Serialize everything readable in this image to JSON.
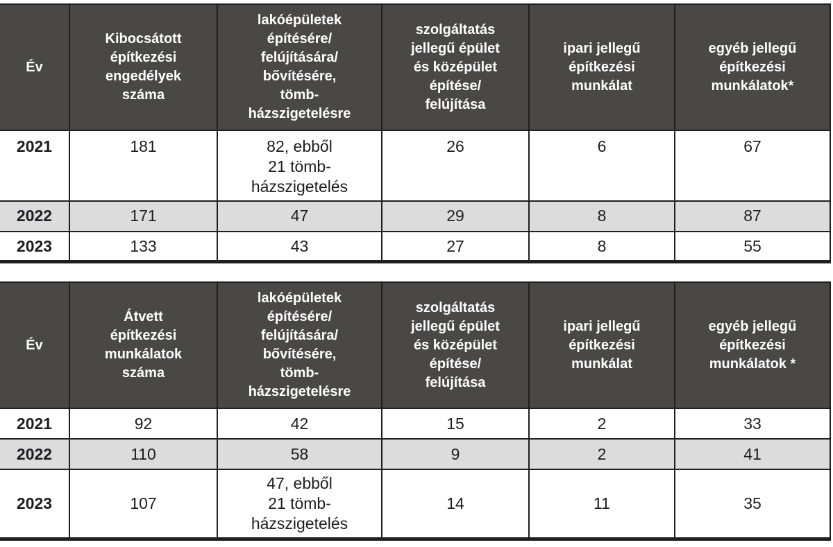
{
  "colors": {
    "header_bg": "#4a4747",
    "header_text": "#ffffff",
    "row_bg": "#ffffff",
    "row_alt_bg": "#dcdcdc",
    "border": "#1f1f1f",
    "body_text": "#1d1d20"
  },
  "tables": [
    {
      "name": "permits-issued",
      "headers": [
        "Év",
        "Kibocsátott\népítkezési\nengedélyek\nszáma",
        "lakóépületek\népítésére/\nfelújítására/\nbővítésére,\ntömb-\nházszigetelésre",
        "szolgáltatás\njellegű épület\nés középület\népítése/\nfelújítása",
        "ipari jellegű\népítkezési\nmunkálat",
        "egyéb jellegű\népítkezési\nmunkálatok*"
      ],
      "rows": [
        {
          "year": "2021",
          "values": [
            "181",
            "82, ebből\n21 tömb-\nházszigetelés",
            "26",
            "6",
            "67"
          ],
          "shaded": false,
          "align": "top"
        },
        {
          "year": "2022",
          "values": [
            "171",
            "47",
            "29",
            "8",
            "87"
          ],
          "shaded": true,
          "align": "middle"
        },
        {
          "year": "2023",
          "values": [
            "133",
            "43",
            "27",
            "8",
            "55"
          ],
          "shaded": false,
          "align": "middle"
        }
      ]
    },
    {
      "name": "works-received",
      "headers": [
        "Év",
        "Átvett\népítkezési\nmunkálatok\nszáma",
        "lakóépületek\népítésére/\nfelújítására/\nbővítésére,\ntömb-\nházszigetelésre",
        "szolgáltatás\njellegű épület\nés középület\népítése/\nfelújítása",
        "ipari jellegű\népítkezési\nmunkálat",
        "egyéb jellegű\népítkezési\nmunkálatok *"
      ],
      "rows": [
        {
          "year": "2021",
          "values": [
            "92",
            "42",
            "15",
            "2",
            "33"
          ],
          "shaded": false,
          "align": "middle"
        },
        {
          "year": "2022",
          "values": [
            "110",
            "58",
            "9",
            "2",
            "41"
          ],
          "shaded": true,
          "align": "middle"
        },
        {
          "year": "2023",
          "values": [
            "107",
            "47, ebből\n21 tömb-\nházszigetelés",
            "14",
            "11",
            "35"
          ],
          "shaded": false,
          "align": "middle"
        }
      ]
    }
  ],
  "chart_data": [
    {
      "type": "table",
      "title": "Kibocsátott építkezési engedélyek száma",
      "categories": [
        "2021",
        "2022",
        "2023"
      ],
      "series": [
        {
          "name": "Kibocsátott építkezési engedélyek száma",
          "values": [
            181,
            171,
            133
          ]
        },
        {
          "name": "lakóépületek építésére/felújítására/bővítésére, tömb-házszigetelésre",
          "values": [
            82,
            47,
            43
          ],
          "note_2021": "ebből 21 tömbházszigetelés"
        },
        {
          "name": "szolgáltatás jellegű épület és középület építése/felújítása",
          "values": [
            26,
            29,
            27
          ]
        },
        {
          "name": "ipari jellegű építkezési munkálat",
          "values": [
            6,
            8,
            8
          ]
        },
        {
          "name": "egyéb jellegű építkezési munkálatok*",
          "values": [
            67,
            87,
            55
          ]
        }
      ]
    },
    {
      "type": "table",
      "title": "Átvett építkezési munkálatok száma",
      "categories": [
        "2021",
        "2022",
        "2023"
      ],
      "series": [
        {
          "name": "Átvett építkezési munkálatok száma",
          "values": [
            92,
            110,
            107
          ]
        },
        {
          "name": "lakóépületek építésére/felújítására/bővítésére, tömb-házszigetelésre",
          "values": [
            42,
            58,
            47
          ],
          "note_2023": "ebből 21 tömbházszigetelés"
        },
        {
          "name": "szolgáltatás jellegű épület és középület építése/felújítása",
          "values": [
            15,
            9,
            14
          ]
        },
        {
          "name": "ipari jellegű építkezési munkálat",
          "values": [
            2,
            2,
            11
          ]
        },
        {
          "name": "egyéb jellegű építkezési munkálatok *",
          "values": [
            33,
            41,
            35
          ]
        }
      ]
    }
  ]
}
